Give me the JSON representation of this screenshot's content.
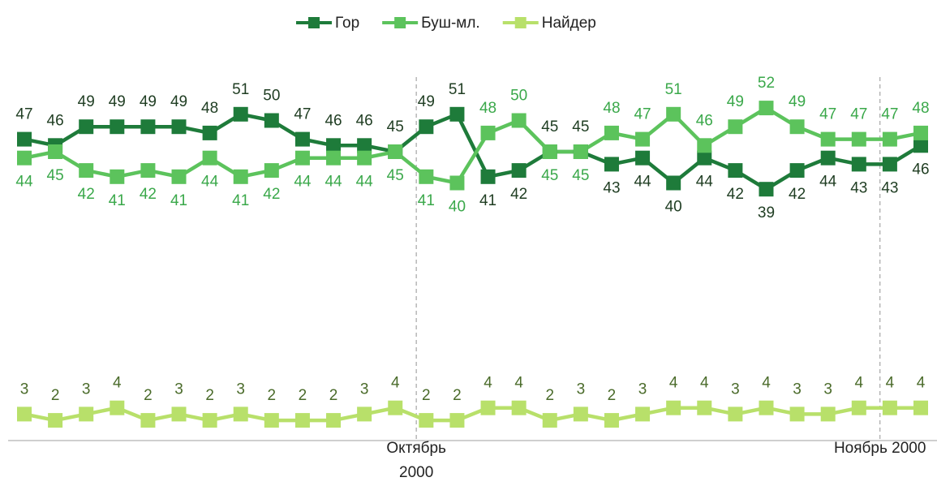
{
  "chart_data": {
    "type": "line",
    "categories": [
      null,
      null,
      null,
      null,
      null,
      null,
      null,
      null,
      null,
      null,
      null,
      null,
      null,
      "Октябрь 2000",
      null,
      null,
      null,
      null,
      null,
      null,
      null,
      null,
      null,
      null,
      null,
      null,
      null,
      null,
      "Ноябрь 2000",
      null
    ],
    "series": [
      {
        "name": "Гор",
        "color": "#1e7b3a",
        "label_color": "#1f3d22",
        "values": [
          47,
          46,
          49,
          49,
          49,
          49,
          48,
          51,
          50,
          47,
          46,
          46,
          45,
          49,
          51,
          41,
          42,
          45,
          45,
          43,
          44,
          40,
          44,
          42,
          39,
          42,
          44,
          43,
          43,
          46
        ]
      },
      {
        "name": "Буш-мл.",
        "color": "#5cc35c",
        "label_color": "#3aa84a",
        "values": [
          44,
          45,
          42,
          41,
          42,
          41,
          44,
          41,
          42,
          44,
          44,
          44,
          45,
          41,
          40,
          48,
          50,
          45,
          45,
          48,
          47,
          51,
          46,
          49,
          52,
          49,
          47,
          47,
          47,
          48
        ]
      },
      {
        "name": "Найдер",
        "color": "#b8e06a",
        "label_color": "#4a6b2a",
        "values": [
          3,
          2,
          3,
          4,
          2,
          3,
          2,
          3,
          2,
          2,
          2,
          3,
          4,
          2,
          2,
          4,
          4,
          2,
          3,
          2,
          3,
          4,
          4,
          3,
          4,
          3,
          3,
          4,
          4,
          4
        ]
      }
    ],
    "ylim": [
      0,
      60
    ],
    "legend": "top"
  }
}
